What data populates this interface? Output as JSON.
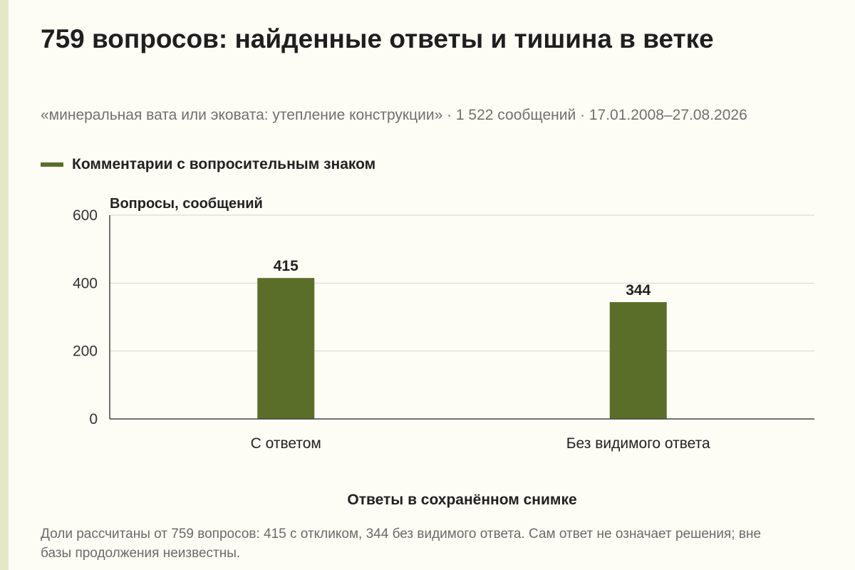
{
  "title": "759 вопросов: найденные ответы и тишина в ветке",
  "subtitle": "«минеральная вата или эковата: утепление конструкции» · 1 522 сообщений · 17.01.2008–27.08.2026",
  "legend": {
    "label": "Комментарии с вопросительным знаком",
    "color": "#5a6e2a"
  },
  "footnote": "Доли рассчитаны от 759 вопросов: 415 с откликом, 344 без видимого ответа. Сам ответ не означает решения; вне базы продолжения неизвестны.",
  "chart_data": {
    "type": "bar",
    "categories": [
      "С ответом",
      "Без видимого ответа"
    ],
    "series": [
      {
        "name": "Комментарии с вопросительным знаком",
        "values": [
          415,
          344
        ],
        "color": "#5a6e2a"
      }
    ],
    "data_labels": [
      "415",
      "344"
    ],
    "xlabel": "Ответы в сохранённом снимке",
    "ylabel": "Вопросы, сообщений",
    "ylim": [
      0,
      600
    ],
    "yticks": [
      0,
      200,
      400,
      600
    ],
    "ytick_labels": [
      "0",
      "200",
      "400",
      "600"
    ],
    "grid": true,
    "legend_position": "top-left"
  }
}
